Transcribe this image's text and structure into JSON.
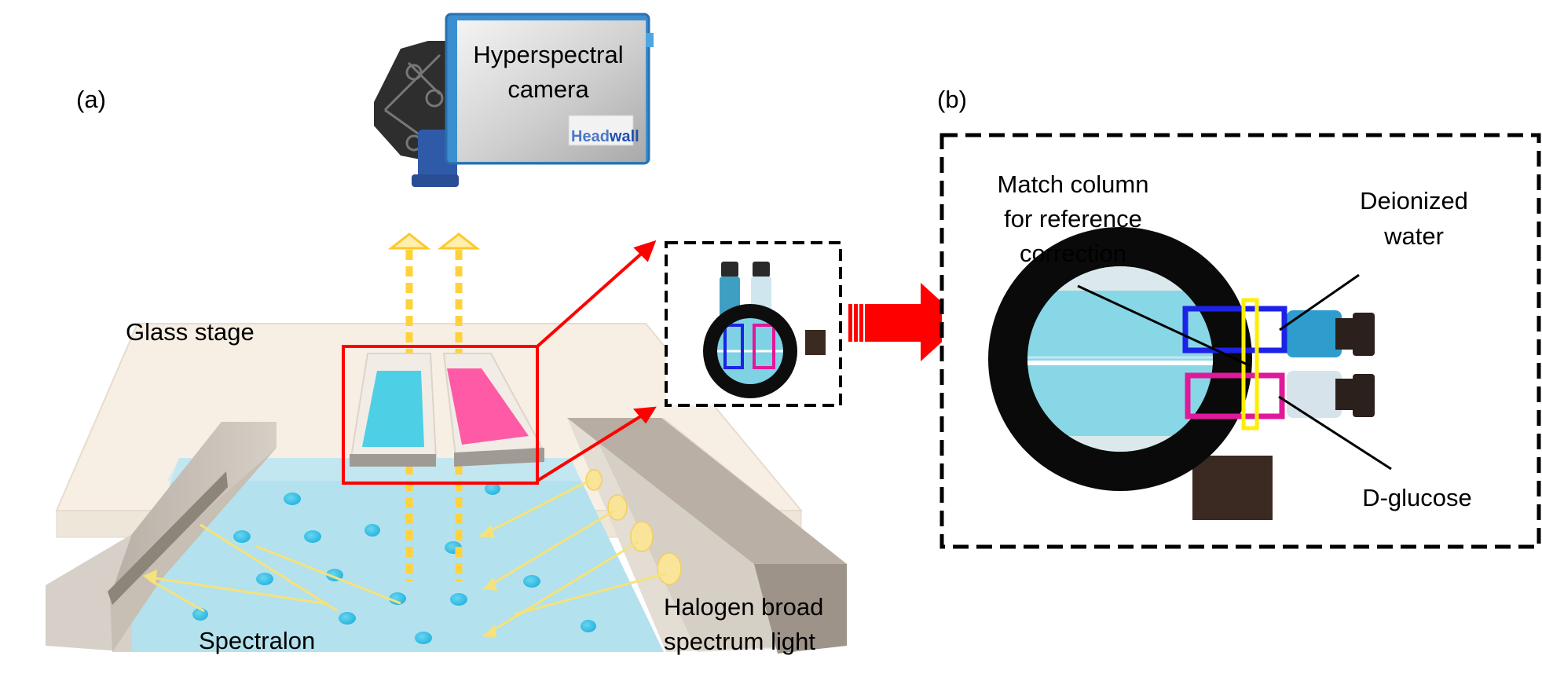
{
  "panels": {
    "a_label": "(a)",
    "b_label": "(b)"
  },
  "camera": {
    "label_line1": "Hyperspectral",
    "label_line2": "camera",
    "brand_part1": "Head",
    "brand_part2": "wall"
  },
  "setup_labels": {
    "glass_stage": "Glass stage",
    "spectralon": "Spectralon",
    "halogen_line1": "Halogen broad",
    "halogen_line2": "spectrum light"
  },
  "zoom_labels": {
    "match_line1": "Match column",
    "match_line2": "for reference",
    "match_line3": "correction",
    "water_line1": "Deionized",
    "water_line2": "water",
    "glucose": "D-glucose"
  },
  "colors": {
    "cuvette_water": "#4dcfe6",
    "cuvette_glucose": "#ff5aa6",
    "water_roi": "#1c22e6",
    "glucose_roi": "#e0189a",
    "match_column": "#ffee00",
    "highlight_red": "#ff0000",
    "camera_blue": "#3a9ad9",
    "light_yellow": "#ffd23a"
  },
  "icons": [
    "camera-icon",
    "bulb-icon",
    "arrow-up-icon",
    "arrow-right-icon"
  ]
}
